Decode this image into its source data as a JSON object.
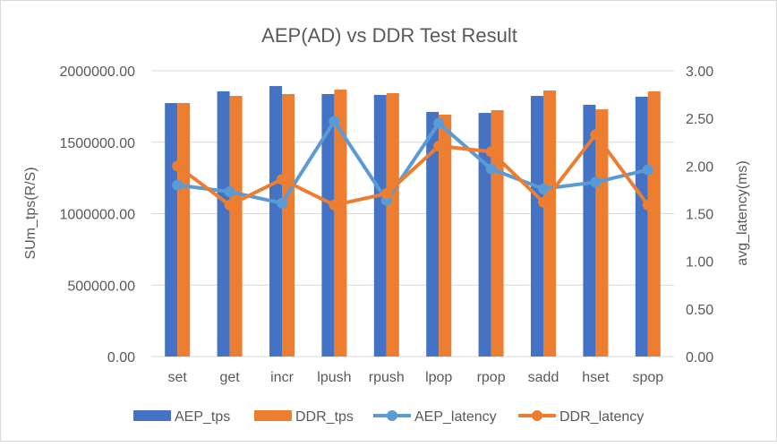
{
  "chart_data": {
    "type": "bar+line",
    "title": "AEP(AD) vs DDR Test Result",
    "ylabel": "SUm_tps(R/S)",
    "y2label": "avg_latency(ms)",
    "ylim": [
      0,
      2000000
    ],
    "y2lim": [
      0,
      3
    ],
    "yticks": [
      "0.00",
      "500000.00",
      "1000000.00",
      "1500000.00",
      "2000000.00"
    ],
    "y2ticks": [
      "0.00",
      "0.50",
      "1.00",
      "1.50",
      "2.00",
      "2.50",
      "3.00"
    ],
    "grid": true,
    "legend": "bottom",
    "categories": [
      "set",
      "get",
      "incr",
      "lpush",
      "rpush",
      "lpop",
      "rpop",
      "sadd",
      "hset",
      "spop"
    ],
    "series": [
      {
        "name": "AEP_tps",
        "type": "bar",
        "axis": "left",
        "color": "#4472c4",
        "values": [
          1774000,
          1856000,
          1893000,
          1837000,
          1831000,
          1712000,
          1705000,
          1824000,
          1762000,
          1818000
        ]
      },
      {
        "name": "DDR_tps",
        "type": "bar",
        "axis": "left",
        "color": "#ed7d31",
        "values": [
          1774000,
          1824000,
          1837000,
          1868000,
          1843000,
          1693000,
          1724000,
          1862000,
          1730000,
          1856000
        ]
      },
      {
        "name": "AEP_latency",
        "type": "line",
        "axis": "right",
        "color": "#5b9bd5",
        "values": [
          1.8,
          1.73,
          1.61,
          2.47,
          1.64,
          2.45,
          1.97,
          1.76,
          1.83,
          1.96
        ]
      },
      {
        "name": "DDR_latency",
        "type": "line",
        "axis": "right",
        "color": "#ed7d31",
        "values": [
          2.0,
          1.59,
          1.86,
          1.59,
          1.71,
          2.21,
          2.15,
          1.62,
          2.33,
          1.59
        ]
      }
    ]
  }
}
